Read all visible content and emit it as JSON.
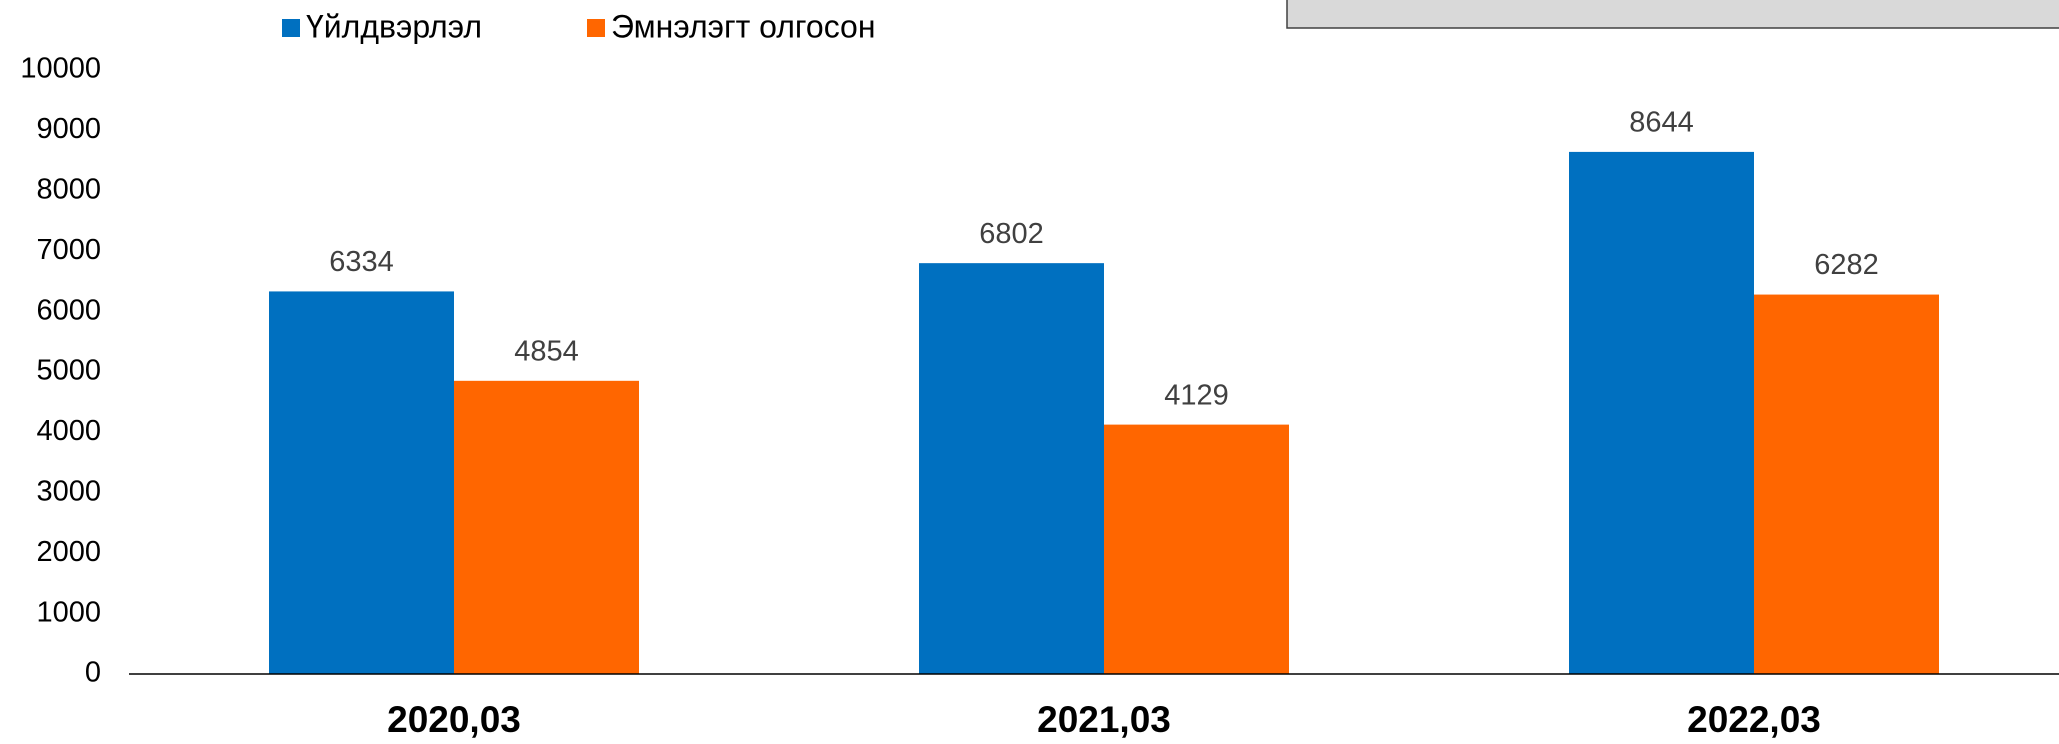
{
  "chart_data": {
    "type": "bar",
    "categories": [
      "2020,03",
      "2021,03",
      "2022,03"
    ],
    "series": [
      {
        "name": "Үйлдвэрлэл",
        "color": "#0070c0",
        "values": [
          6334,
          6802,
          8644
        ]
      },
      {
        "name": "Эмнэлэгт олгосон",
        "color": "#ff6600",
        "values": [
          4854,
          4129,
          6282
        ]
      }
    ],
    "ylim": [
      0,
      10000
    ],
    "yticks": [
      0,
      1000,
      2000,
      3000,
      4000,
      5000,
      6000,
      7000,
      8000,
      9000,
      10000
    ],
    "grid": false,
    "legend": "top"
  }
}
